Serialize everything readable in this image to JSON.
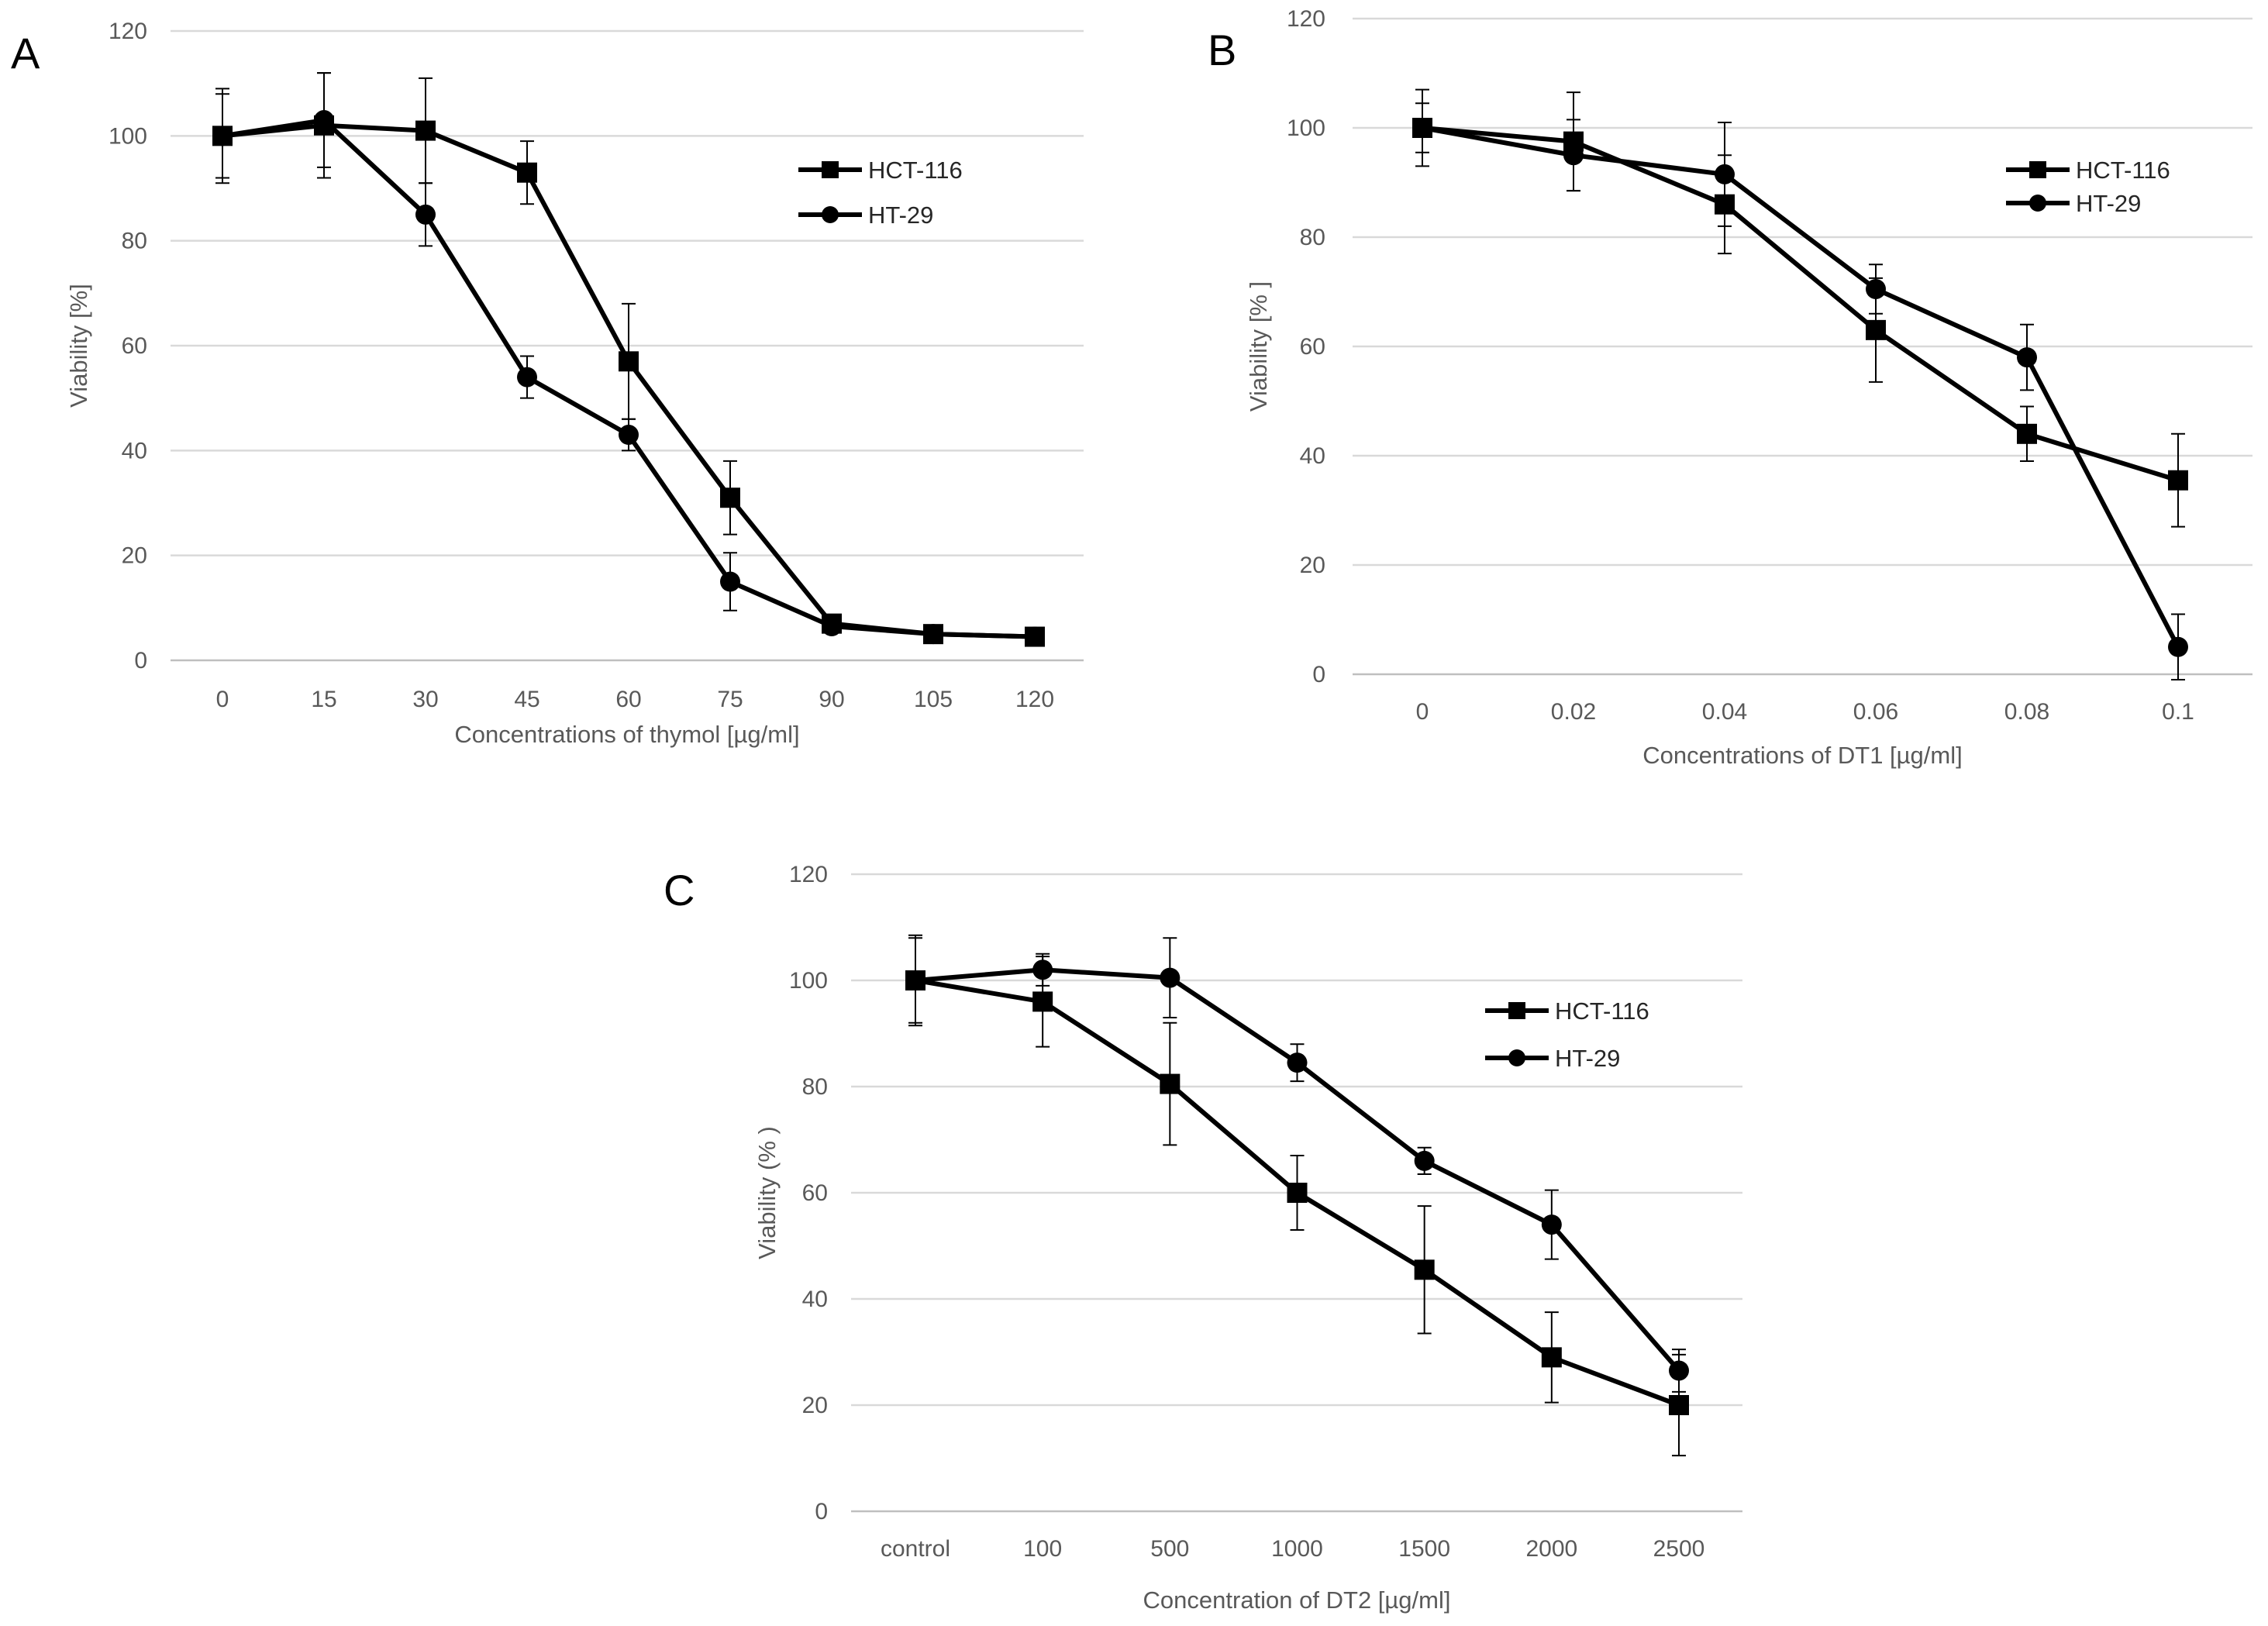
{
  "chart_data": [
    {
      "type": "line",
      "panel_label": "A",
      "xlabel": "Concentrations of  thymol [µg/ml]",
      "ylabel": "Viability [%]",
      "ylim": [
        0,
        120
      ],
      "yticks": [
        0,
        20,
        40,
        60,
        80,
        100,
        120
      ],
      "categories": [
        "0",
        "15",
        "30",
        "45",
        "60",
        "75",
        "90",
        "105",
        "120"
      ],
      "grid": true,
      "legend_position": "top-right",
      "series": [
        {
          "name": "HCT-116",
          "marker": "square",
          "values": [
            100,
            102,
            101,
            93,
            57,
            31,
            7,
            5,
            4.5
          ],
          "errors": [
            8,
            10,
            10,
            6,
            11,
            7,
            1.5,
            1,
            1
          ]
        },
        {
          "name": "HT-29",
          "marker": "circle",
          "values": [
            100,
            103,
            85,
            54,
            43,
            15,
            6.5,
            5,
            4.5
          ],
          "errors": [
            9,
            9,
            6,
            4,
            3,
            5.5,
            1,
            1,
            1
          ]
        }
      ]
    },
    {
      "type": "line",
      "panel_label": "B",
      "xlabel": "Concentrations of DT1 [µg/ml]",
      "ylabel": "Viability [% ]",
      "ylim": [
        0,
        120
      ],
      "yticks": [
        0,
        20,
        40,
        60,
        80,
        100,
        120
      ],
      "categories": [
        "0",
        "0.02",
        "0.04",
        "0.06",
        "0.08",
        "0.1"
      ],
      "grid": true,
      "legend_position": "top-right",
      "series": [
        {
          "name": "HCT-116",
          "marker": "square",
          "values": [
            100,
            97.5,
            86,
            63,
            44,
            35.5
          ],
          "errors": [
            7,
            9,
            9,
            9.5,
            5,
            8.5
          ]
        },
        {
          "name": "HT-29",
          "marker": "circle",
          "values": [
            100,
            95,
            91.5,
            70.5,
            58,
            5
          ],
          "errors": [
            4.5,
            6.5,
            9.5,
            4.5,
            6,
            6
          ]
        }
      ]
    },
    {
      "type": "line",
      "panel_label": "C",
      "xlabel": "Concentration of DT2  [µg/ml]",
      "ylabel": "Viability (% )",
      "ylim": [
        0,
        120
      ],
      "yticks": [
        0,
        20,
        40,
        60,
        80,
        100,
        120
      ],
      "categories": [
        "control",
        "100",
        "500",
        "1000",
        "1500",
        "2000",
        "2500"
      ],
      "grid": true,
      "legend_position": "top-right",
      "series": [
        {
          "name": "HCT-116",
          "marker": "square",
          "values": [
            100,
            96,
            80.5,
            60,
            45.5,
            29,
            20
          ],
          "errors": [
            8.5,
            8.5,
            11.5,
            7,
            12,
            8.5,
            9.5
          ]
        },
        {
          "name": "HT-29",
          "marker": "circle",
          "values": [
            100,
            102,
            100.5,
            84.5,
            66,
            54,
            26.5
          ],
          "errors": [
            8,
            3,
            7.5,
            3.5,
            2.5,
            6.5,
            4
          ]
        }
      ]
    }
  ]
}
